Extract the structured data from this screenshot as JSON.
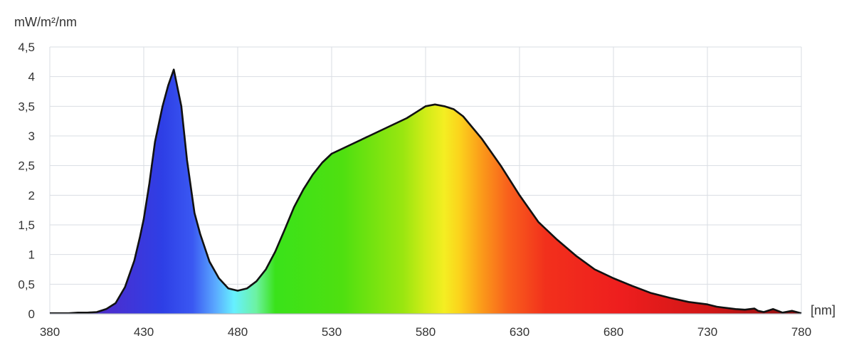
{
  "chart_data": {
    "type": "area",
    "title": "",
    "ylabel": "mW/m²/nm",
    "xlabel": "[nm]",
    "xlim": [
      380,
      780
    ],
    "ylim": [
      0,
      4.5
    ],
    "grid": true,
    "legend": "none",
    "x_ticks": [
      380,
      430,
      480,
      530,
      580,
      630,
      680,
      730,
      780
    ],
    "x_tick_labels": [
      "380",
      "430",
      "480",
      "530",
      "580",
      "630",
      "680",
      "730",
      "780"
    ],
    "y_ticks": [
      0,
      0.5,
      1,
      1.5,
      2,
      2.5,
      3,
      3.5,
      4,
      4.5
    ],
    "y_tick_labels": [
      "0",
      "0,5",
      "1",
      "1,5",
      "2",
      "2,5",
      "3",
      "3,5",
      "4",
      "4,5"
    ],
    "line_color": "#111111",
    "fill": "visible-spectrum gradient",
    "series": [
      {
        "x": [
          380,
          390,
          395,
          400,
          405,
          410,
          415,
          420,
          425,
          428,
          430,
          433,
          436,
          440,
          443,
          446,
          450,
          453,
          457,
          460,
          465,
          470,
          475,
          480,
          485,
          490,
          495,
          500,
          505,
          510,
          515,
          520,
          525,
          530,
          540,
          550,
          560,
          570,
          575,
          580,
          585,
          590,
          595,
          600,
          610,
          620,
          630,
          640,
          650,
          660,
          670,
          680,
          690,
          700,
          710,
          720,
          730,
          735,
          740,
          745,
          750,
          755,
          757,
          760,
          765,
          770,
          775,
          780
        ],
        "y": [
          0.01,
          0.01,
          0.02,
          0.02,
          0.03,
          0.08,
          0.18,
          0.45,
          0.9,
          1.3,
          1.6,
          2.2,
          2.9,
          3.5,
          3.85,
          4.12,
          3.5,
          2.6,
          1.7,
          1.35,
          0.88,
          0.6,
          0.43,
          0.39,
          0.43,
          0.55,
          0.75,
          1.05,
          1.42,
          1.8,
          2.1,
          2.35,
          2.55,
          2.7,
          2.85,
          3.0,
          3.15,
          3.3,
          3.4,
          3.5,
          3.53,
          3.5,
          3.45,
          3.33,
          2.95,
          2.5,
          2.0,
          1.55,
          1.25,
          0.98,
          0.75,
          0.6,
          0.47,
          0.35,
          0.27,
          0.2,
          0.16,
          0.12,
          0.1,
          0.08,
          0.07,
          0.09,
          0.05,
          0.03,
          0.08,
          0.02,
          0.05,
          0.01
        ]
      }
    ]
  }
}
